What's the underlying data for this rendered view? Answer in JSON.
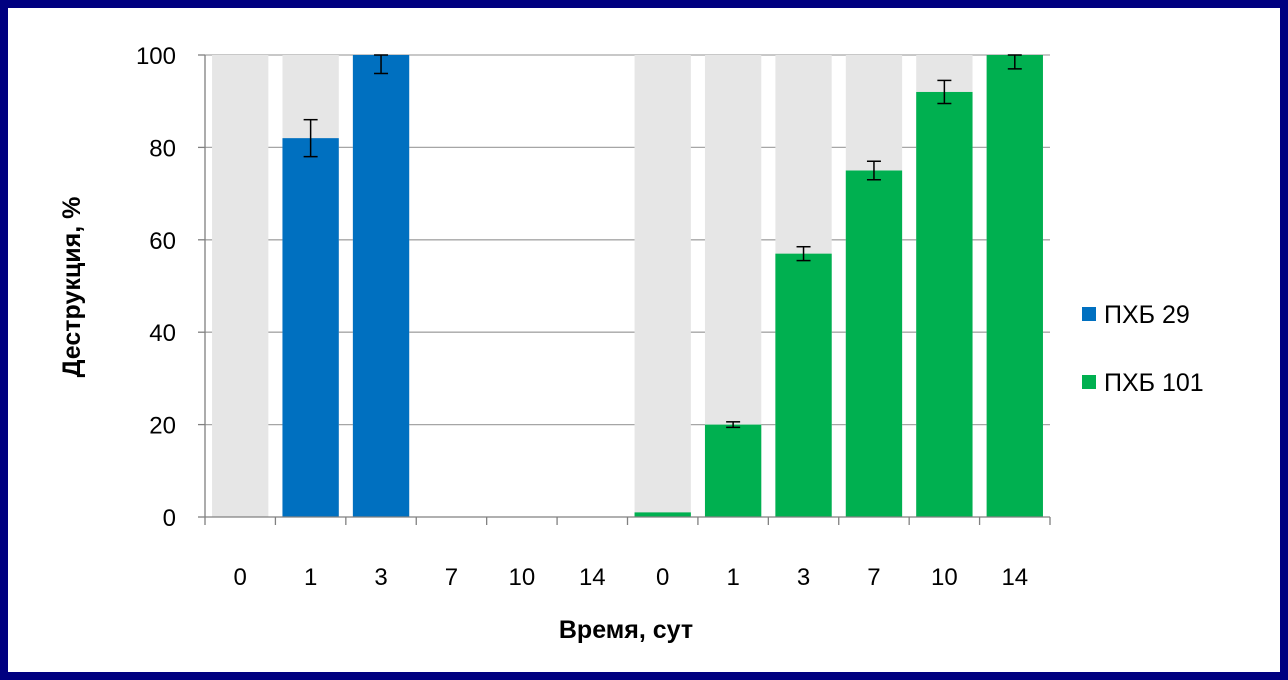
{
  "chart_data": {
    "type": "bar",
    "title": "",
    "xlabel": "Время, сут",
    "ylabel": "Деструкция, %",
    "ylim": [
      0,
      100
    ],
    "yticks": [
      0,
      20,
      40,
      60,
      80,
      100
    ],
    "grid": true,
    "legend_position": "right",
    "groups": [
      {
        "series": "ПХБ 29",
        "categories": [
          "0",
          "1",
          "3",
          "7",
          "10",
          "14"
        ],
        "values": [
          0,
          82,
          100,
          null,
          null,
          null
        ],
        "errors": [
          0,
          4,
          4,
          null,
          null,
          null
        ],
        "background": [
          100,
          100,
          100,
          null,
          null,
          null
        ]
      },
      {
        "series": "ПХБ 101",
        "categories": [
          "0",
          "1",
          "3",
          "7",
          "10",
          "14"
        ],
        "values": [
          1,
          20,
          57,
          75,
          92,
          100
        ],
        "errors": [
          0,
          0.6,
          1.5,
          2,
          2.5,
          3
        ],
        "background": [
          100,
          100,
          100,
          100,
          100,
          100
        ]
      }
    ],
    "legend": [
      {
        "name": "ПХБ 29",
        "color": "#0070C0"
      },
      {
        "name": "ПХБ 101",
        "color": "#00B050"
      }
    ],
    "background_color": "#E6E6E6",
    "gridline_color": "#A6A6A6",
    "frame_color": "#000080"
  }
}
